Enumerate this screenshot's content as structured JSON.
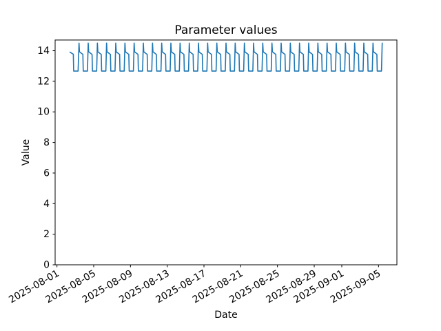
{
  "figure": {
    "background": "#ffffff"
  },
  "chart_data": {
    "type": "line",
    "title": "Parameter values",
    "xlabel": "Date",
    "ylabel": "Value",
    "grid": false,
    "legend": "none",
    "line_color": "#1f77b4",
    "axis_color": "#000000",
    "text_color": "#000000",
    "x_axis": {
      "unit": "days since 2025-08-01",
      "xlim_days": [
        -0.2,
        37.0
      ],
      "tick_days": [
        0,
        4,
        8,
        12,
        16,
        20,
        24,
        28,
        31,
        35
      ],
      "tick_labels": [
        "2025-08-01",
        "2025-08-05",
        "2025-08-09",
        "2025-08-13",
        "2025-08-17",
        "2025-08-21",
        "2025-08-25",
        "2025-08-29",
        "2025-09-01",
        "2025-09-05"
      ],
      "tick_label_rotation_deg": 30
    },
    "y_axis": {
      "ylim": [
        0,
        14.7
      ],
      "tick_values": [
        0,
        2,
        4,
        6,
        8,
        10,
        12,
        14
      ],
      "tick_labels": [
        "0",
        "2",
        "4",
        "6",
        "8",
        "10",
        "12",
        "14"
      ]
    },
    "series": [
      {
        "name": "parameter-values",
        "color": "#1f77b4",
        "line_width": 1.6,
        "start_date": "2025-08-02",
        "end_date": "2025-09-05",
        "description": "Repeating daily square-wave cycle: sharp peak 14.5, step down to ~13.93, plateau declining to ~13.76, sharp drop to flat trough 12.67, then sharp rise to next day's peak.",
        "intro_points": [
          [
            1.42,
            13.9
          ],
          [
            1.78,
            13.77
          ],
          [
            1.82,
            12.67
          ],
          [
            2.3,
            12.67
          ]
        ],
        "first_peak_day": 2.4,
        "n_peaks": 34,
        "period_days": 1.0,
        "cycle_offsets": [
          0.0,
          0.05,
          0.42,
          0.46,
          0.92
        ],
        "cycle_values": [
          14.5,
          13.93,
          13.76,
          12.67,
          12.67
        ],
        "peak_value": 14.5,
        "plateau_high": 13.93,
        "plateau_low": 13.76,
        "trough_value": 12.67
      }
    ]
  }
}
